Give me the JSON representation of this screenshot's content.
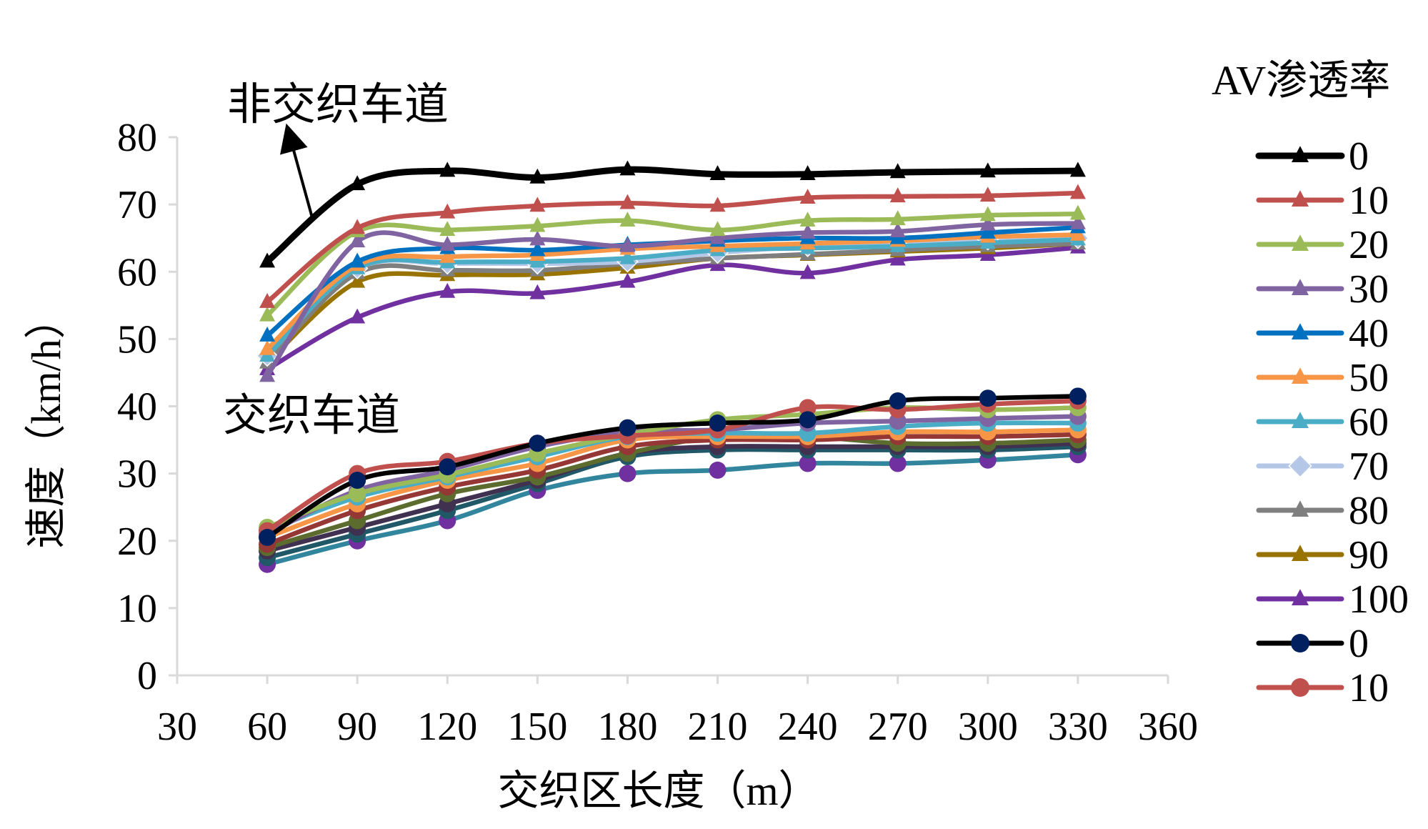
{
  "chart_data": {
    "type": "line",
    "title": "",
    "xlabel": "交织区长度（m）",
    "ylabel": "速度（km/h）",
    "xlim": [
      30,
      360
    ],
    "ylim": [
      0,
      80
    ],
    "x_ticks": [
      30,
      60,
      90,
      120,
      150,
      180,
      210,
      240,
      270,
      300,
      330,
      360
    ],
    "y_ticks": [
      0,
      10,
      20,
      30,
      40,
      50,
      60,
      70,
      80
    ],
    "grid": false,
    "legend_position": "right",
    "legend_title": "AV渗透率",
    "annotations": [
      {
        "text": "非交织车道",
        "has_arrow": true
      },
      {
        "text": "交织车道",
        "has_arrow": false
      }
    ],
    "x": [
      60,
      90,
      120,
      150,
      180,
      210,
      240,
      270,
      300,
      330
    ],
    "series": [
      {
        "name": "0",
        "group": "非交织车道",
        "marker": "triangle",
        "color": "#000000",
        "values": [
          61.5,
          73,
          75,
          74,
          75.2,
          74.5,
          74.5,
          74.8,
          74.9,
          75
        ]
      },
      {
        "name": "10",
        "group": "非交织车道",
        "marker": "triangle",
        "color": "#c0504d",
        "values": [
          55.5,
          66.5,
          68.8,
          69.8,
          70.2,
          69.8,
          71,
          71.2,
          71.3,
          71.7
        ]
      },
      {
        "name": "20",
        "group": "非交织车道",
        "marker": "triangle",
        "color": "#9bbb59",
        "values": [
          53.5,
          66,
          66.2,
          66.8,
          67.6,
          66.2,
          67.6,
          67.8,
          68.4,
          68.6
        ]
      },
      {
        "name": "30",
        "group": "非交织车道",
        "marker": "triangle",
        "color": "#8064a2",
        "values": [
          44.5,
          64.5,
          64,
          64.8,
          63.8,
          65,
          65.8,
          66,
          67,
          67.2
        ]
      },
      {
        "name": "40",
        "group": "非交织车道",
        "marker": "triangle",
        "color": "#0070c0",
        "values": [
          50.5,
          61.5,
          63.5,
          63.2,
          64,
          64.6,
          65,
          65,
          65.8,
          66.6
        ]
      },
      {
        "name": "50",
        "group": "非交织车道",
        "marker": "triangle",
        "color": "#f79646",
        "values": [
          48.5,
          61,
          62.2,
          62.5,
          63.4,
          63.8,
          64.2,
          64.6,
          65.2,
          65.5
        ]
      },
      {
        "name": "60",
        "group": "非交织车道",
        "marker": "triangle",
        "color": "#4bacc6",
        "values": [
          47.5,
          60.5,
          61.4,
          61.5,
          62,
          63.2,
          63.5,
          63.8,
          64.3,
          64.8
        ]
      },
      {
        "name": "70",
        "group": "非交织车道",
        "marker": "diamond",
        "color": "#b4c7e7",
        "values": [
          47.5,
          60.5,
          61.2,
          61.2,
          61.5,
          62.8,
          63.8,
          64.5,
          64.8,
          65
        ]
      },
      {
        "name": "80",
        "group": "非交织车道",
        "marker": "triangle",
        "color": "#7f7f7f",
        "values": [
          46.5,
          59.8,
          60.2,
          60.2,
          61.2,
          62,
          62.6,
          63.2,
          63.8,
          64.2
        ]
      },
      {
        "name": "90",
        "group": "非交织车道",
        "marker": "triangle",
        "color": "#997300",
        "values": [
          46.5,
          58.5,
          59.5,
          59.6,
          60.6,
          62,
          62.5,
          63,
          63.5,
          64.2
        ]
      },
      {
        "name": "100",
        "group": "非交织车道",
        "marker": "triangle",
        "color": "#7030a0",
        "values": [
          45.5,
          53.2,
          57,
          56.8,
          58.5,
          61,
          59.8,
          61.8,
          62.5,
          63.6
        ]
      },
      {
        "name": "0",
        "group": "交织车道",
        "marker": "circle",
        "color": "#000000",
        "marker_color": "#002060",
        "values": [
          20.5,
          29,
          31,
          34.5,
          36.8,
          37.5,
          38,
          40.8,
          41.2,
          41.5
        ]
      },
      {
        "name": "10",
        "group": "交织车道",
        "marker": "circle",
        "color": "#c0504d",
        "values": [
          21.5,
          30,
          31.8,
          34.5,
          35.6,
          36.5,
          39.8,
          39.5,
          40.3,
          40.8
        ]
      },
      {
        "name": "20",
        "group": "交织车道",
        "marker": "circle",
        "color": "#9bbb59",
        "values": [
          22,
          27,
          29.8,
          33,
          35.8,
          38,
          38.8,
          39.8,
          39.5,
          39.8
        ]
      },
      {
        "name": "30",
        "group": "交织车道",
        "marker": "circle",
        "color": "#8064a2",
        "values": [
          21,
          27.5,
          30.5,
          34,
          36.2,
          36.5,
          37.5,
          37.8,
          38.2,
          38.5
        ]
      },
      {
        "name": "40",
        "group": "交织车道",
        "marker": "circle",
        "color": "#4bacc6",
        "values": [
          21.5,
          26.5,
          29.5,
          32.5,
          35.5,
          36,
          36,
          37,
          37.5,
          37.5
        ]
      },
      {
        "name": "50",
        "group": "交织车道",
        "marker": "circle",
        "color": "#f79646",
        "values": [
          20.5,
          25.5,
          29,
          31.5,
          35,
          35.5,
          35.5,
          36.2,
          36.2,
          36.5
        ]
      },
      {
        "name": "60",
        "group": "交织车道",
        "marker": "circle",
        "color": "#953735",
        "values": [
          19.5,
          24.5,
          28,
          30.5,
          34,
          35,
          35,
          35.5,
          35.5,
          35.8
        ]
      },
      {
        "name": "70",
        "group": "交织车道",
        "marker": "circle",
        "color": "#5c6b2e",
        "values": [
          19,
          23,
          27,
          29.5,
          33,
          35.5,
          35.5,
          34.5,
          34.5,
          35
        ]
      },
      {
        "name": "80",
        "group": "交织车道",
        "marker": "circle",
        "color": "#403151",
        "values": [
          18.5,
          22,
          25.5,
          29,
          33,
          34,
          34,
          34,
          34,
          34.5
        ]
      },
      {
        "name": "90",
        "group": "交织车道",
        "marker": "circle",
        "color": "#215867",
        "values": [
          17.5,
          21,
          24.5,
          28.5,
          32.5,
          33.5,
          33.5,
          33.5,
          33.5,
          34
        ]
      },
      {
        "name": "100",
        "group": "交织车道",
        "marker": "circle",
        "color": "#7030a0",
        "line_color": "#31859c",
        "values": [
          16.5,
          20,
          23,
          27.5,
          30,
          30.5,
          31.5,
          31.5,
          32,
          32.8
        ]
      }
    ],
    "legend_entries": [
      {
        "label": "0",
        "marker": "triangle",
        "color": "#000000"
      },
      {
        "label": "10",
        "marker": "triangle",
        "color": "#c0504d"
      },
      {
        "label": "20",
        "marker": "triangle",
        "color": "#9bbb59"
      },
      {
        "label": "30",
        "marker": "triangle",
        "color": "#8064a2"
      },
      {
        "label": "40",
        "marker": "triangle",
        "color": "#0070c0"
      },
      {
        "label": "50",
        "marker": "triangle",
        "color": "#f79646"
      },
      {
        "label": "60",
        "marker": "triangle",
        "color": "#4bacc6"
      },
      {
        "label": "70",
        "marker": "diamond",
        "color": "#b4c7e7"
      },
      {
        "label": "80",
        "marker": "triangle",
        "color": "#7f7f7f"
      },
      {
        "label": "90",
        "marker": "triangle",
        "color": "#997300"
      },
      {
        "label": "100",
        "marker": "triangle",
        "color": "#7030a0"
      },
      {
        "label": "0",
        "marker": "circle",
        "color": "#000000",
        "marker_color": "#002060"
      },
      {
        "label": "10",
        "marker": "circle",
        "color": "#c0504d"
      }
    ]
  }
}
